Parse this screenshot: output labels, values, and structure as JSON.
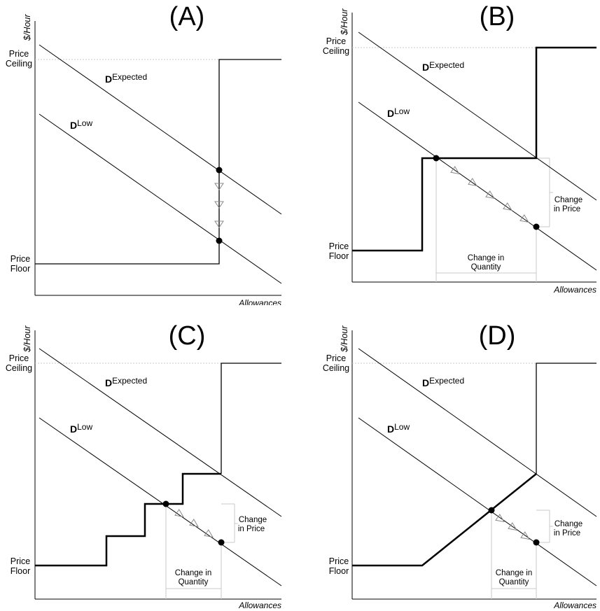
{
  "panels": [
    {
      "id": "A",
      "title": "(A)",
      "ylabel": "$/Hour",
      "xlabel": "Allowances",
      "ceiling_l1": "Price",
      "ceiling_l2": "Ceiling",
      "floor_l1": "Price",
      "floor_l2": "Floor",
      "d_exp": "D",
      "d_exp_sup": "Expected",
      "d_low": "D",
      "d_low_sup": "Low"
    },
    {
      "id": "B",
      "title": "(B)",
      "ylabel": "$/Hour",
      "xlabel": "Allowances",
      "ceiling_l1": "Price",
      "ceiling_l2": "Ceiling",
      "floor_l1": "Price",
      "floor_l2": "Floor",
      "d_exp": "D",
      "d_exp_sup": "Expected",
      "d_low": "D",
      "d_low_sup": "Low",
      "cp1": "Change",
      "cp2": "in Price",
      "cq1": "Change in",
      "cq2": "Quantity"
    },
    {
      "id": "C",
      "title": "(C)",
      "ylabel": "$/Hour",
      "xlabel": "Allowances",
      "ceiling_l1": "Price",
      "ceiling_l2": "Ceiling",
      "floor_l1": "Price",
      "floor_l2": "Floor",
      "d_exp": "D",
      "d_exp_sup": "Expected",
      "d_low": "D",
      "d_low_sup": "Low",
      "cp1": "Change",
      "cp2": "in Price",
      "cq1": "Change in",
      "cq2": "Quantity"
    },
    {
      "id": "D",
      "title": "(D)",
      "ylabel": "$/Hour",
      "xlabel": "Allowances",
      "ceiling_l1": "Price",
      "ceiling_l2": "Ceiling",
      "floor_l1": "Price",
      "floor_l2": "Floor",
      "d_exp": "D",
      "d_exp_sup": "Expected",
      "d_low": "D",
      "d_low_sup": "Low",
      "cp1": "Change",
      "cp2": "in Price",
      "cq1": "Change in",
      "cq2": "Quantity"
    }
  ]
}
